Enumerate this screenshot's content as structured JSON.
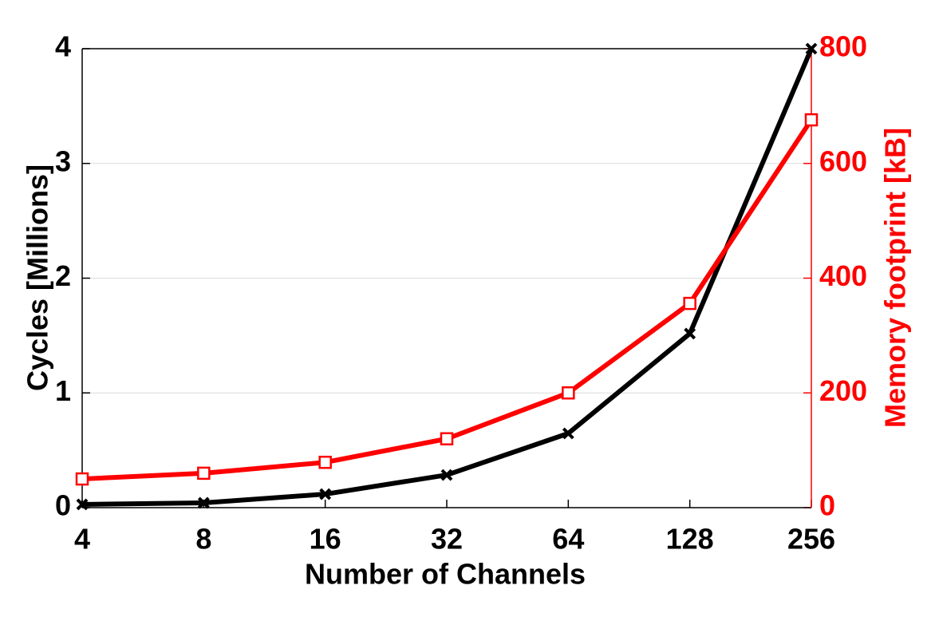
{
  "chart_data": {
    "type": "line",
    "x_label": "Number of Channels",
    "y_label": "Cycles [Millions]",
    "y2_label": "Memory footprint [kB]",
    "x": [
      4,
      8,
      16,
      32,
      64,
      128,
      256
    ],
    "xscale": "log",
    "xlim": [
      4,
      256
    ],
    "xticks": [
      4,
      8,
      16,
      32,
      64,
      128,
      256
    ],
    "ylim": [
      0,
      4
    ],
    "yticks": [
      0,
      1,
      2,
      3,
      4
    ],
    "y2lim": [
      0,
      800
    ],
    "y2ticks": [
      0,
      200,
      400,
      600,
      800
    ],
    "grid": true,
    "series": [
      {
        "name": "Cycles",
        "color": "#000000",
        "marker": "x",
        "values": [
          0.028,
          0.042,
          0.118,
          0.285,
          0.647,
          1.517,
          4.0
        ]
      },
      {
        "name": "Memory footprint",
        "color": "#ff0000",
        "marker": "square",
        "axis": "y2",
        "values": [
          50,
          60,
          79,
          120,
          200,
          356,
          676
        ]
      }
    ]
  }
}
